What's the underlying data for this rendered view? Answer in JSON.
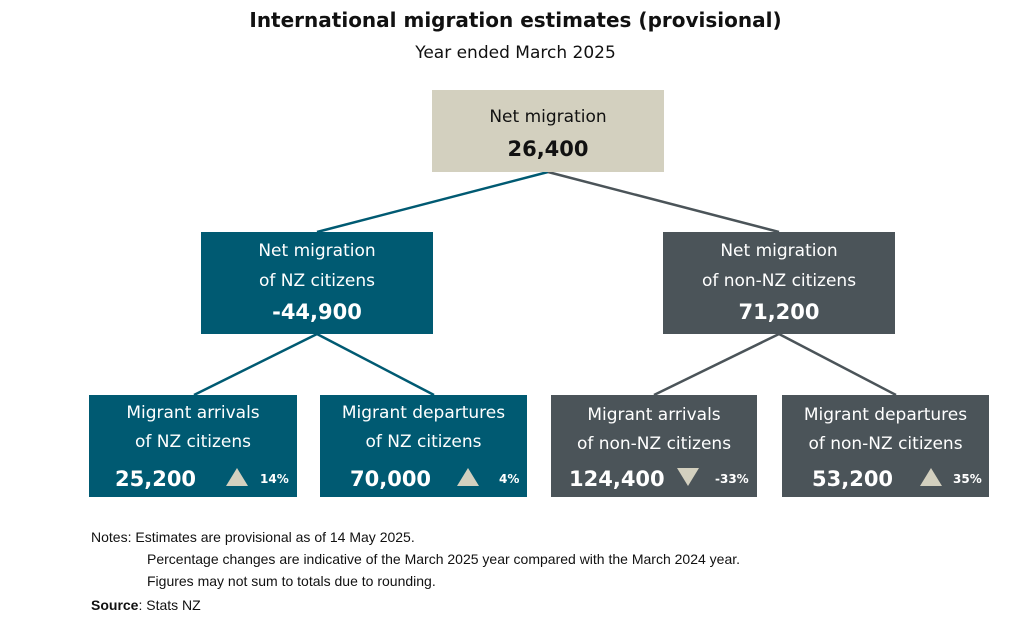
{
  "header": {
    "title": "International migration estimates (provisional)",
    "subtitle": "Year ended March 2025"
  },
  "colors": {
    "teal": "#005a72",
    "slate": "#4b5459",
    "beige": "#d3d0bf"
  },
  "root": {
    "label": "Net migration",
    "value": "26,400"
  },
  "nz": {
    "label1": "Net migration",
    "label2": "of NZ citizens",
    "value": "-44,900",
    "arrivals": {
      "label1": "Migrant arrivals",
      "label2": "of NZ citizens",
      "value": "25,200",
      "change": "14%",
      "direction": "up"
    },
    "departures": {
      "label1": "Migrant departures",
      "label2": "of NZ citizens",
      "value": "70,000",
      "change": "4%",
      "direction": "up"
    }
  },
  "non_nz": {
    "label1": "Net migration",
    "label2": "of non-NZ citizens",
    "value": "71,200",
    "arrivals": {
      "label1": "Migrant arrivals",
      "label2": "of non-NZ citizens",
      "value": "124,400",
      "change": "-33%",
      "direction": "down"
    },
    "departures": {
      "label1": "Migrant departures",
      "label2": "of non-NZ citizens",
      "value": "53,200",
      "change": "35%",
      "direction": "up"
    }
  },
  "notes": {
    "label": "Notes:",
    "line1": "Estimates are provisional as of 14 May 2025.",
    "line2": "Percentage changes are indicative of the March 2025 year compared with the March 2024 year.",
    "line3": "Figures may not sum to totals due to rounding."
  },
  "source": {
    "label": "Source",
    "text": ": Stats NZ"
  }
}
